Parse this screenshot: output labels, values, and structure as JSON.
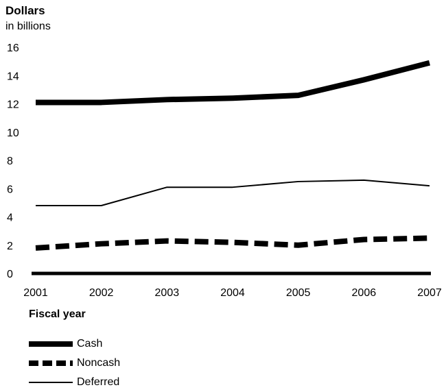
{
  "chart_data": {
    "type": "line",
    "ylabel": "Dollars",
    "ylabel_sub": "in billions",
    "xlabel": "Fiscal year",
    "x": [
      "2001",
      "2002",
      "2003",
      "2004",
      "2005",
      "2006",
      "2007"
    ],
    "yticks": [
      "0",
      "2",
      "4",
      "6",
      "8",
      "10",
      "12",
      "14",
      "16"
    ],
    "ylim": [
      0,
      16
    ],
    "grid": false,
    "legend_position": "bottom-left",
    "series": [
      {
        "name": "Cash",
        "style": "thick-solid",
        "color": "#000000",
        "values": [
          12.1,
          12.1,
          12.3,
          12.4,
          12.6,
          13.7,
          14.9
        ]
      },
      {
        "name": "Noncash",
        "style": "thick-dashed",
        "color": "#000000",
        "values": [
          1.8,
          2.1,
          2.3,
          2.2,
          2.0,
          2.4,
          2.5
        ]
      },
      {
        "name": "Deferred",
        "style": "thin-solid",
        "color": "#000000",
        "values": [
          4.8,
          4.8,
          6.1,
          6.1,
          6.5,
          6.6,
          6.2
        ]
      }
    ]
  }
}
